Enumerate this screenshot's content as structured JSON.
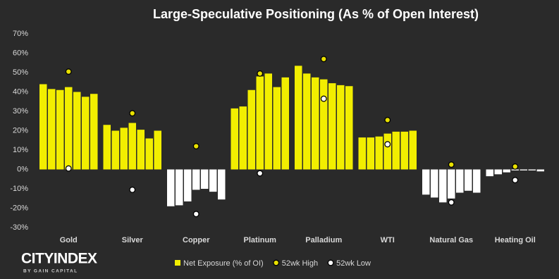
{
  "chart_data": {
    "type": "bar",
    "title": "Large-Speculative Positioning (As % of Open Interest)",
    "categories": [
      "Gold",
      "Silver",
      "Copper",
      "Platinum",
      "Palladium",
      "WTI",
      "Natural Gas",
      "Heating Oil"
    ],
    "series": [
      {
        "name": "Net Exposure (% of OI)",
        "type": "bar",
        "color": "#f2ee00",
        "negative_color": "#ffffff",
        "values": [
          [
            44,
            41.5,
            41,
            42.5,
            40,
            37.5,
            39
          ],
          [
            23,
            20,
            21.5,
            24,
            20.5,
            16,
            20
          ],
          [
            -19,
            -18.5,
            -16.5,
            -10.5,
            -10,
            -11.5,
            -15.5
          ],
          [
            31.5,
            32.5,
            41,
            48,
            49.5,
            42.5,
            47.5
          ],
          [
            53.5,
            49.5,
            47.5,
            46.5,
            44.5,
            43.5,
            43
          ],
          [
            16.5,
            16.5,
            17,
            18.5,
            19.5,
            19.5,
            20
          ],
          [
            -13,
            -14.5,
            -17,
            -15,
            -12,
            -11,
            -12
          ],
          [
            -3.5,
            -2.5,
            -1.5,
            -0.5,
            -0.5,
            -0.5,
            -1
          ]
        ]
      },
      {
        "name": "52wk High",
        "type": "scatter",
        "color": "#e8e000",
        "values": [
          50.5,
          29,
          12,
          49.5,
          57,
          25.5,
          2.5,
          1.5
        ]
      },
      {
        "name": "52wk Low",
        "type": "scatter",
        "color": "#ffffff",
        "values": [
          0.5,
          -10.5,
          -23,
          -2,
          36.5,
          13,
          -17,
          -5.5
        ]
      }
    ],
    "ylim": [
      -30,
      70
    ],
    "yticks": [
      {
        "value": 70,
        "label": "70%"
      },
      {
        "value": 60,
        "label": "60%"
      },
      {
        "value": 50,
        "label": "50%"
      },
      {
        "value": 40,
        "label": "40%"
      },
      {
        "value": 30,
        "label": "30%"
      },
      {
        "value": 20,
        "label": "20%"
      },
      {
        "value": 10,
        "label": "10%"
      },
      {
        "value": 0,
        "label": "0%"
      },
      {
        "value": -10,
        "label": "-10%"
      },
      {
        "value": -20,
        "label": "-20%"
      },
      {
        "value": -30,
        "label": "-30%"
      }
    ],
    "grid": false,
    "legend": "bottom"
  },
  "logo": {
    "name": "CITYINDEX",
    "tagline": "BY GAIN CAPITAL"
  }
}
